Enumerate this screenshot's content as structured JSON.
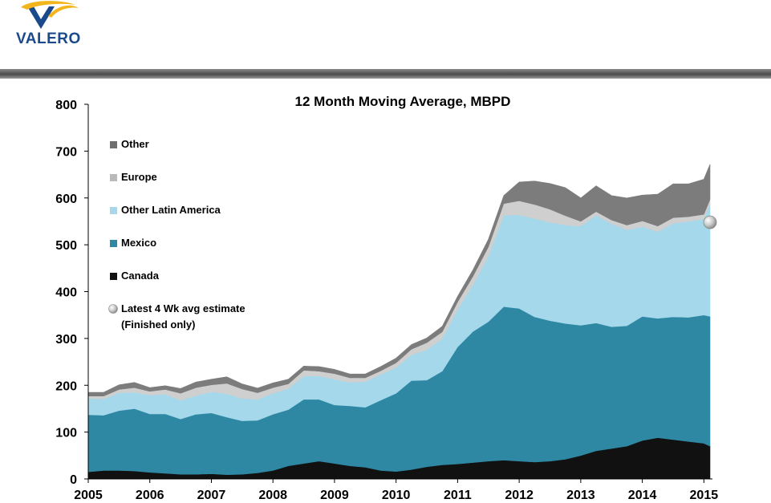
{
  "brand": {
    "logo_text": "VALERO"
  },
  "chart_data": {
    "type": "area",
    "stacked": true,
    "title": "12 Month Moving Average, MBPD",
    "xlabel": "",
    "ylabel": "",
    "xlim": [
      2005,
      2015.1
    ],
    "ylim": [
      0,
      800
    ],
    "yticks": [
      0,
      100,
      200,
      300,
      400,
      500,
      600,
      700,
      800
    ],
    "xticks": [
      2005,
      2006,
      2007,
      2008,
      2009,
      2010,
      2011,
      2012,
      2013,
      2014,
      2015
    ],
    "x": [
      2005.0,
      2005.25,
      2005.5,
      2005.75,
      2006.0,
      2006.25,
      2006.5,
      2006.75,
      2007.0,
      2007.25,
      2007.5,
      2007.75,
      2008.0,
      2008.25,
      2008.5,
      2008.75,
      2009.0,
      2009.25,
      2009.5,
      2009.75,
      2010.0,
      2010.25,
      2010.5,
      2010.75,
      2011.0,
      2011.25,
      2011.5,
      2011.75,
      2012.0,
      2012.25,
      2012.5,
      2012.75,
      2013.0,
      2013.25,
      2013.5,
      2013.75,
      2014.0,
      2014.25,
      2014.5,
      2014.75,
      2015.0,
      2015.1
    ],
    "series": [
      {
        "name": "Canada",
        "color": "#111111",
        "values": [
          15,
          18,
          18,
          17,
          14,
          12,
          10,
          10,
          11,
          9,
          10,
          13,
          18,
          28,
          33,
          38,
          33,
          28,
          25,
          18,
          16,
          20,
          26,
          30,
          32,
          35,
          38,
          40,
          38,
          36,
          38,
          42,
          50,
          60,
          65,
          70,
          82,
          88,
          84,
          80,
          76,
          70
        ]
      },
      {
        "name": "Mexico",
        "color": "#2e88a4",
        "values": [
          122,
          118,
          128,
          133,
          125,
          127,
          118,
          128,
          130,
          123,
          114,
          112,
          120,
          120,
          137,
          132,
          125,
          128,
          128,
          150,
          167,
          190,
          185,
          200,
          250,
          280,
          298,
          328,
          326,
          310,
          300,
          290,
          278,
          273,
          260,
          257,
          265,
          255,
          262,
          265,
          274,
          277
        ]
      },
      {
        "name": "Other Latin America",
        "color": "#a4d8ea",
        "values": [
          35,
          35,
          38,
          35,
          40,
          42,
          40,
          40,
          45,
          50,
          48,
          45,
          45,
          45,
          50,
          50,
          55,
          50,
          55,
          55,
          55,
          55,
          65,
          70,
          80,
          100,
          140,
          195,
          200,
          210,
          210,
          210,
          212,
          230,
          220,
          205,
          192,
          185,
          200,
          205,
          205,
          240
        ]
      },
      {
        "name": "Europe",
        "color": "#cfcfcf",
        "values": [
          5,
          6,
          7,
          10,
          8,
          10,
          15,
          17,
          15,
          22,
          20,
          14,
          12,
          10,
          12,
          10,
          12,
          10,
          8,
          8,
          10,
          12,
          15,
          14,
          16,
          18,
          20,
          25,
          30,
          30,
          28,
          20,
          10,
          8,
          8,
          10,
          12,
          12,
          12,
          10,
          10,
          10
        ]
      },
      {
        "name": "Other",
        "color": "#7c7c7c",
        "values": [
          8,
          8,
          10,
          11,
          8,
          8,
          10,
          12,
          12,
          14,
          11,
          10,
          10,
          10,
          9,
          10,
          9,
          8,
          8,
          9,
          10,
          10,
          10,
          12,
          12,
          14,
          16,
          17,
          40,
          50,
          55,
          60,
          50,
          55,
          52,
          58,
          55,
          68,
          72,
          70,
          75,
          75
        ]
      }
    ],
    "estimate_point": {
      "name": "Latest 4 Wk avg estimate",
      "x": 2015.1,
      "y": 548
    },
    "legend": {
      "placement": "top-left",
      "items": [
        {
          "label": "Other",
          "swatch": "#6e6e6e"
        },
        {
          "label": "Europe",
          "swatch": "#b9b9b9"
        },
        {
          "label": "Other Latin America",
          "swatch": "#a4d8ea"
        },
        {
          "label": "Mexico",
          "swatch": "#2e88a4"
        },
        {
          "label": "Canada",
          "swatch": "#111111"
        },
        {
          "label": "Latest 4 Wk avg estimate",
          "label2": "(Finished only)",
          "swatch": "marker"
        }
      ]
    }
  }
}
